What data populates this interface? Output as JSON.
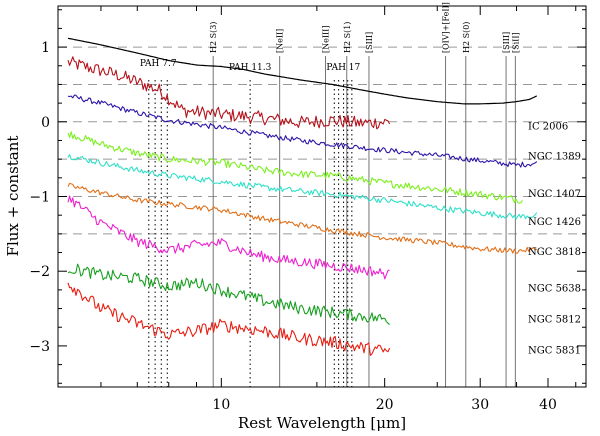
{
  "chart_data": {
    "type": "line",
    "xlabel": "Rest Wavelength [μm]",
    "ylabel": "Flux + constant",
    "xscale": "log",
    "xlim": [
      5.0,
      47.0
    ],
    "ylim": [
      -3.55,
      1.55
    ],
    "x_ticks": [
      10,
      20,
      30,
      40
    ],
    "y_ticks": [
      1,
      0,
      -1,
      -2,
      -3
    ],
    "y_tick_labels": [
      "1",
      "0",
      "−1",
      "−2",
      "−3"
    ],
    "dashed_reference_levels": [
      1.0,
      0.5,
      0.0,
      -0.5,
      -1.0,
      -1.5
    ],
    "emission_lines": [
      {
        "label": "H2 S(3)",
        "x": 9.66
      },
      {
        "label": "[NeII]",
        "x": 12.81
      },
      {
        "label": "[NeIII]",
        "x": 15.56
      },
      {
        "label": "H2 S(1)",
        "x": 17.03
      },
      {
        "label": "[SIII]",
        "x": 18.71
      },
      {
        "label": "[OIV]+[FeII]",
        "x": 25.9
      },
      {
        "label": "H2 S(0)",
        "x": 28.22
      },
      {
        "label": "[SIII]",
        "x": 33.48
      },
      {
        "label": "[SiII]",
        "x": 34.82
      }
    ],
    "pah_features": [
      {
        "label": "PAH 7.7",
        "x": [
          7.35,
          7.55,
          7.75,
          7.95
        ]
      },
      {
        "label": "PAH 11.3",
        "x": [
          11.3
        ]
      },
      {
        "label": "PAH 17",
        "x": [
          16.15,
          16.45,
          16.8,
          17.1,
          17.4
        ]
      }
    ],
    "series": [
      {
        "name": "IC 2006",
        "color": "#000000",
        "noise": 0.0,
        "points": [
          [
            5.2,
            1.12
          ],
          [
            6.0,
            1.03
          ],
          [
            7.0,
            0.92
          ],
          [
            8.0,
            0.82
          ],
          [
            9.0,
            0.76
          ],
          [
            10.0,
            0.74
          ],
          [
            11.0,
            0.7
          ],
          [
            12.0,
            0.64
          ],
          [
            14.0,
            0.56
          ],
          [
            16.0,
            0.5
          ],
          [
            18.0,
            0.43
          ],
          [
            20.0,
            0.37
          ],
          [
            22.0,
            0.32
          ],
          [
            25.0,
            0.27
          ],
          [
            28.0,
            0.24
          ],
          [
            30.0,
            0.24
          ],
          [
            33.0,
            0.25
          ],
          [
            35.0,
            0.27
          ],
          [
            37.0,
            0.3
          ],
          [
            38.5,
            0.36
          ]
        ]
      },
      {
        "name": "",
        "color": "#b5121b",
        "noise": 0.09,
        "points": [
          [
            5.2,
            0.8
          ],
          [
            6.5,
            0.62
          ],
          [
            7.2,
            0.5
          ],
          [
            7.7,
            0.42
          ],
          [
            8.5,
            0.15
          ],
          [
            10.0,
            0.1
          ],
          [
            12.0,
            0.05
          ],
          [
            14.0,
            -0.01
          ],
          [
            16.0,
            0.02
          ],
          [
            18.0,
            -0.02
          ],
          [
            20.5,
            0.0
          ]
        ]
      },
      {
        "name": "NGC 1389",
        "color": "#2d16a8",
        "noise": 0.035,
        "points": [
          [
            5.2,
            0.35
          ],
          [
            6.0,
            0.25
          ],
          [
            7.0,
            0.12
          ],
          [
            8.0,
            0.02
          ],
          [
            10.0,
            -0.08
          ],
          [
            12.0,
            -0.18
          ],
          [
            14.0,
            -0.25
          ],
          [
            16.0,
            -0.3
          ],
          [
            20.0,
            -0.38
          ],
          [
            25.0,
            -0.45
          ],
          [
            30.0,
            -0.52
          ],
          [
            35.0,
            -0.58
          ],
          [
            38.5,
            -0.55
          ]
        ]
      },
      {
        "name": "NGC 1407",
        "color": "#7cf01f",
        "noise": 0.05,
        "points": [
          [
            5.2,
            -0.15
          ],
          [
            6.0,
            -0.3
          ],
          [
            7.0,
            -0.42
          ],
          [
            8.0,
            -0.5
          ],
          [
            10.0,
            -0.55
          ],
          [
            12.0,
            -0.65
          ],
          [
            14.0,
            -0.7
          ],
          [
            16.0,
            -0.72
          ],
          [
            20.0,
            -0.82
          ],
          [
            25.0,
            -0.9
          ],
          [
            30.0,
            -0.97
          ],
          [
            36.0,
            -1.05
          ]
        ]
      },
      {
        "name": "NGC 1426",
        "color": "#30e0c8",
        "noise": 0.04,
        "points": [
          [
            5.2,
            -0.45
          ],
          [
            6.0,
            -0.55
          ],
          [
            7.0,
            -0.65
          ],
          [
            8.0,
            -0.72
          ],
          [
            10.0,
            -0.8
          ],
          [
            12.0,
            -0.88
          ],
          [
            14.0,
            -0.93
          ],
          [
            16.0,
            -0.97
          ],
          [
            20.0,
            -1.05
          ],
          [
            25.0,
            -1.15
          ],
          [
            30.0,
            -1.22
          ],
          [
            35.0,
            -1.27
          ],
          [
            38.5,
            -1.25
          ]
        ]
      },
      {
        "name": "NGC 3818",
        "color": "#e0701a",
        "noise": 0.035,
        "points": [
          [
            5.2,
            -0.85
          ],
          [
            6.0,
            -0.95
          ],
          [
            7.0,
            -1.05
          ],
          [
            8.0,
            -1.1
          ],
          [
            10.0,
            -1.18
          ],
          [
            12.0,
            -1.3
          ],
          [
            14.0,
            -1.38
          ],
          [
            16.0,
            -1.45
          ],
          [
            20.0,
            -1.55
          ],
          [
            25.0,
            -1.62
          ],
          [
            30.0,
            -1.7
          ],
          [
            35.0,
            -1.73
          ],
          [
            38.5,
            -1.7
          ]
        ]
      },
      {
        "name": "",
        "color": "#ee22d0",
        "noise": 0.07,
        "points": [
          [
            5.2,
            -1.0
          ],
          [
            6.0,
            -1.35
          ],
          [
            7.0,
            -1.6
          ],
          [
            8.0,
            -1.72
          ],
          [
            9.0,
            -1.65
          ],
          [
            10.0,
            -1.62
          ],
          [
            11.5,
            -1.78
          ],
          [
            13.0,
            -1.85
          ],
          [
            15.0,
            -1.9
          ],
          [
            17.0,
            -1.95
          ],
          [
            19.0,
            -2.0
          ],
          [
            20.5,
            -2.05
          ]
        ]
      },
      {
        "name": "NGC 5638",
        "color": "#18a020",
        "noise": 0.08,
        "points": [
          [
            5.2,
            -1.95
          ],
          [
            6.0,
            -2.05
          ],
          [
            7.0,
            -2.1
          ],
          [
            8.0,
            -2.2
          ],
          [
            9.0,
            -2.15
          ],
          [
            10.0,
            -2.25
          ],
          [
            12.0,
            -2.4
          ],
          [
            14.0,
            -2.5
          ],
          [
            16.0,
            -2.55
          ],
          [
            18.0,
            -2.6
          ],
          [
            20.5,
            -2.65
          ]
        ]
      },
      {
        "name": "NGC 5812",
        "color": "#e81e12",
        "noise": 0.085,
        "points": [
          [
            5.2,
            -2.15
          ],
          [
            6.0,
            -2.5
          ],
          [
            7.0,
            -2.7
          ],
          [
            8.0,
            -2.85
          ],
          [
            9.0,
            -2.8
          ],
          [
            10.0,
            -2.72
          ],
          [
            12.0,
            -2.8
          ],
          [
            14.0,
            -2.9
          ],
          [
            16.0,
            -2.95
          ],
          [
            18.0,
            -3.02
          ],
          [
            20.5,
            -3.08
          ]
        ]
      }
    ],
    "series_labels": [
      {
        "text": "IC 2006",
        "y": -0.05
      },
      {
        "text": "NGC 1389",
        "y": -0.45
      },
      {
        "text": "NGC 1407",
        "y": -0.95
      },
      {
        "text": "NGC 1426",
        "y": -1.33
      },
      {
        "text": "NGC 3818",
        "y": -1.73
      },
      {
        "text": "NGC 5638",
        "y": -2.22
      },
      {
        "text": "NGC 5812",
        "y": -2.63
      },
      {
        "text": "NGC 5831",
        "y": -3.05
      }
    ]
  }
}
